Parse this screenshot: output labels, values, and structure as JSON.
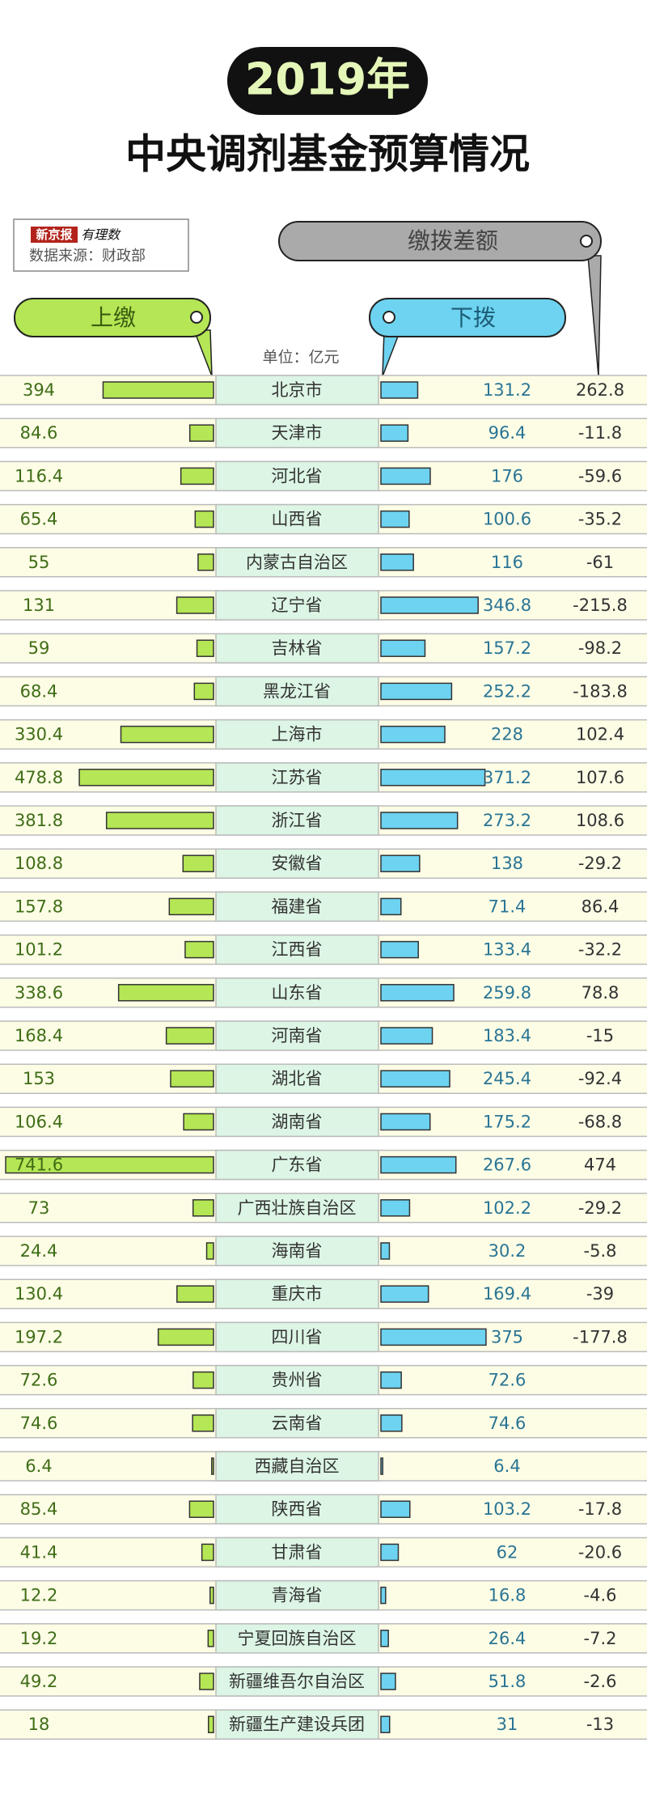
{
  "chart_data": {
    "type": "diverging-bar-table",
    "title": "2019年",
    "subtitle": "中央调剂基金预算情况",
    "brand": "新京报",
    "brand_sub": "有理数",
    "source": "数据来源：财政部",
    "unit": "单位：亿元",
    "categories": [
      "北京市",
      "天津市",
      "河北省",
      "山西省",
      "内蒙古自治区",
      "辽宁省",
      "吉林省",
      "黑龙江省",
      "上海市",
      "江苏省",
      "浙江省",
      "安徽省",
      "福建省",
      "江西省",
      "山东省",
      "河南省",
      "湖北省",
      "湖南省",
      "广东省",
      "广西壮族自治区",
      "海南省",
      "重庆市",
      "四川省",
      "贵州省",
      "云南省",
      "西藏自治区",
      "陕西省",
      "甘肃省",
      "青海省",
      "宁夏回族自治区",
      "新疆维吾尔自治区",
      "新疆生产建设兵团"
    ],
    "series": [
      {
        "name": "上缴",
        "color": "#b5e655",
        "values": [
          394,
          84.6,
          116.4,
          65.4,
          55,
          131,
          59,
          68.4,
          330.4,
          478.8,
          381.8,
          108.8,
          157.8,
          101.2,
          338.6,
          168.4,
          153,
          106.4,
          741.6,
          73,
          24.4,
          130.4,
          197.2,
          72.6,
          74.6,
          6.4,
          85.4,
          41.4,
          12.2,
          19.2,
          49.2,
          18
        ]
      },
      {
        "name": "下拨",
        "color": "#6dd3f0",
        "values": [
          131.2,
          96.4,
          176,
          100.6,
          116,
          346.8,
          157.2,
          252.2,
          228,
          371.2,
          273.2,
          138,
          71.4,
          133.4,
          259.8,
          183.4,
          245.4,
          175.2,
          267.6,
          102.2,
          30.2,
          169.4,
          375,
          72.6,
          74.6,
          6.4,
          103.2,
          62,
          16.8,
          26.4,
          51.8,
          31
        ]
      },
      {
        "name": "缴拨差额",
        "color": "#aaaaaa",
        "values": [
          262.8,
          -11.8,
          -59.6,
          -35.2,
          -61,
          -215.8,
          -98.2,
          -183.8,
          102.4,
          107.6,
          108.6,
          -29.2,
          86.4,
          -32.2,
          78.8,
          -15,
          -92.4,
          -68.8,
          474,
          -29.2,
          -5.8,
          -39,
          -177.8,
          null,
          null,
          null,
          -17.8,
          -20.6,
          -4.6,
          -7.2,
          -2.6,
          -13
        ]
      }
    ]
  }
}
